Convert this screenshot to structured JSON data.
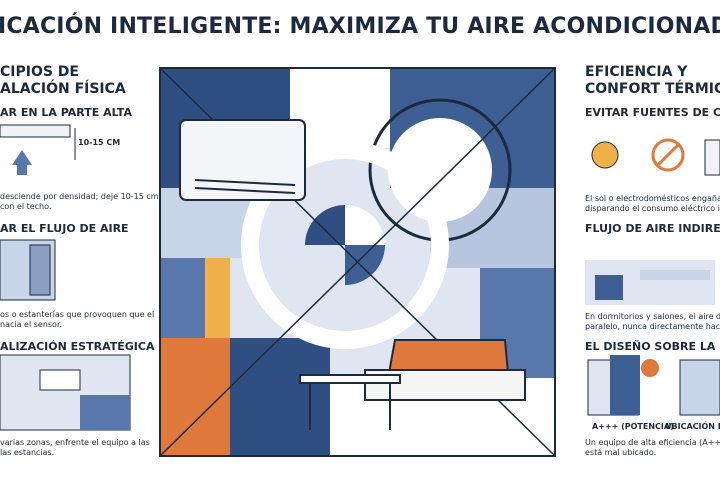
{
  "header": {
    "title": "ICACIÓN INTELIGENTE: MAXIMIZA TU AIRE ACONDICIONAD"
  },
  "left": {
    "heading": [
      "CIPIOS DE",
      "ALACIÓN FÍSICA"
    ],
    "sections": [
      {
        "title": "AR EN LA PARTE ALTA",
        "measure": "10-15 CM",
        "text": [
          "desciende por densidad; deje 10-15 cm",
          "con el techo."
        ]
      },
      {
        "title": "AR EL FLUJO DE AIRE",
        "text": [
          "os o estanterías que provoquen que el",
          "nacia el sensor."
        ]
      },
      {
        "title": "ALIZACIÓN ESTRATÉGICA",
        "text": [
          "varias zonas, enfrente el equipo a las",
          "las estancias."
        ]
      }
    ]
  },
  "right": {
    "heading": [
      "EFICIENCIA Y",
      "CONFORT TÉRMIC"
    ],
    "sections": [
      {
        "title": "EVITAR FUENTES DE CALO",
        "text": [
          "El sol o electrodomésticos engañan al t",
          "disparando el consumo eléctrico innece"
        ]
      },
      {
        "title": "FLUJO DE AIRE INDIRECTO",
        "text": [
          "En dormitorios y salones, el aire debe fl",
          "paralelo, nunca directamente hacia las"
        ]
      },
      {
        "title": "EL DISEÑO SOBRE LA POT",
        "labels": [
          "A+++ (POTENCIA)",
          "UBICACIÓN IN"
        ],
        "text": [
          "Un equipo de alta eficiencia (A+++) gas",
          "está mal ubicado."
        ]
      }
    ]
  }
}
